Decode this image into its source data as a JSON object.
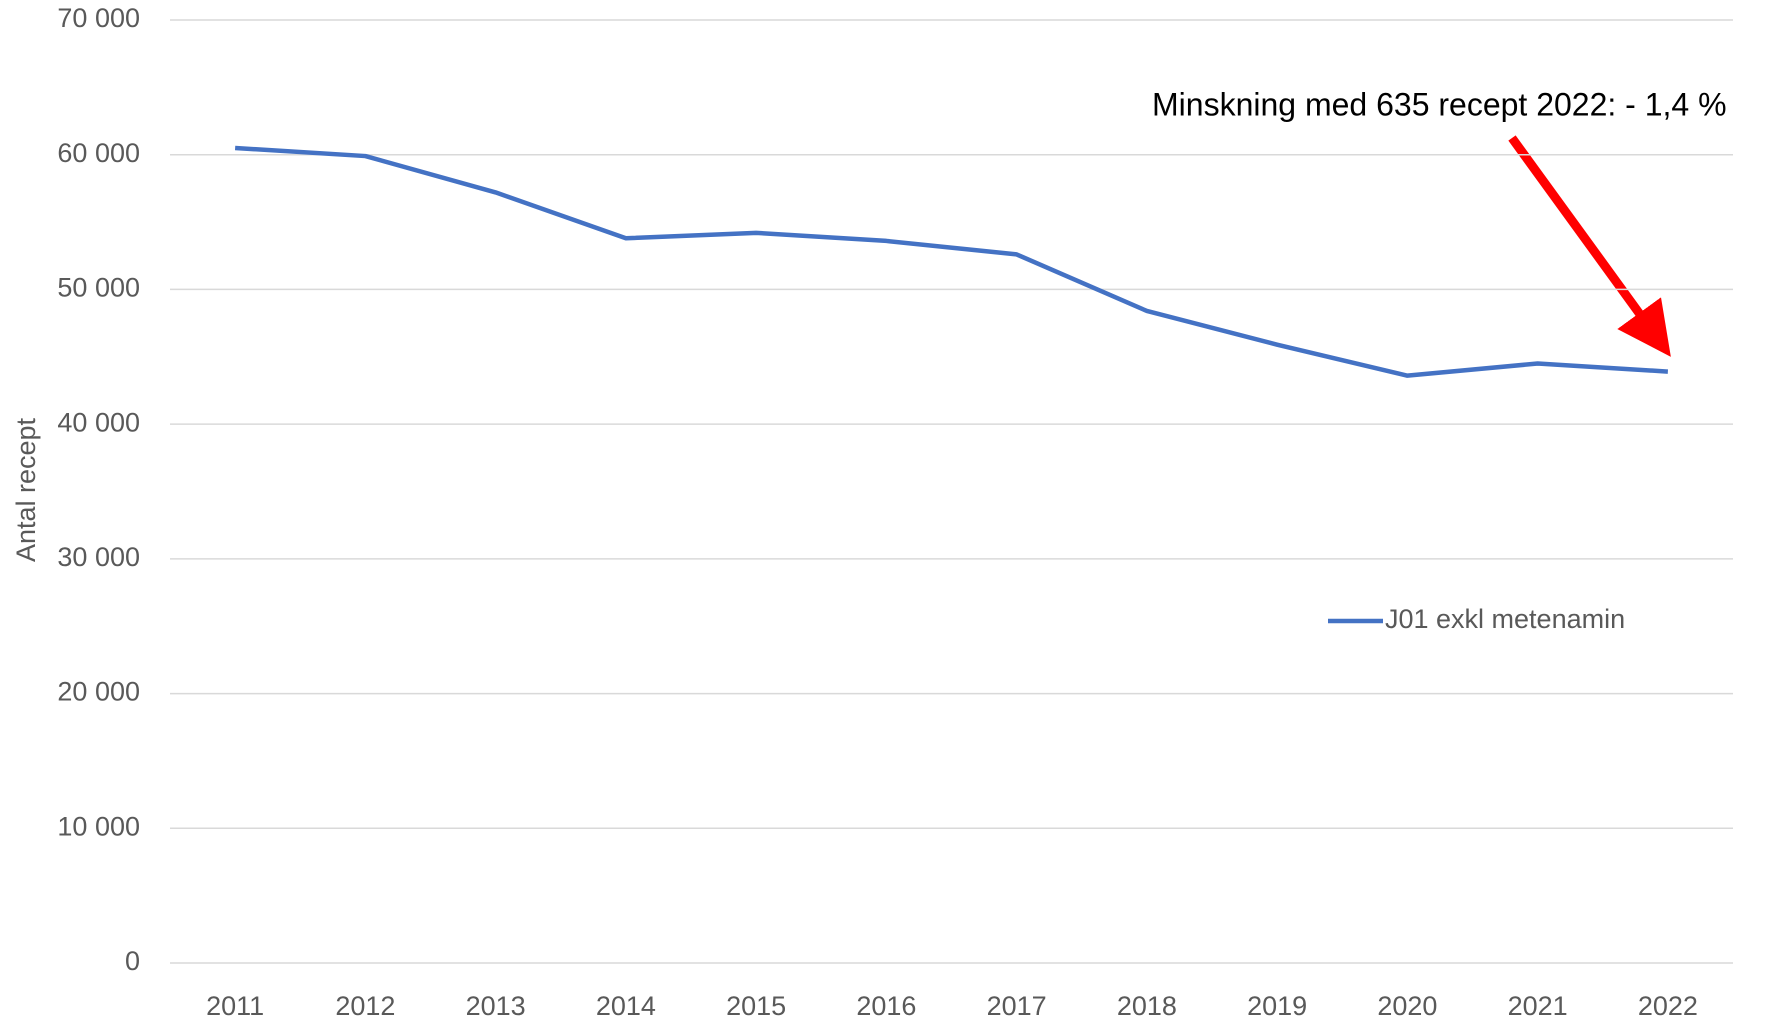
{
  "chart_data": {
    "type": "line",
    "y_label": "Antal recept",
    "annotation": "Minskning med 635 recept 2022: - 1,4 %",
    "categories": [
      "2011",
      "2012",
      "2013",
      "2014",
      "2015",
      "2016",
      "2017",
      "2018",
      "2019",
      "2020",
      "2021",
      "2022"
    ],
    "series": [
      {
        "name": "J01 exkl metenamin",
        "color": "#4472c4",
        "values": [
          60500,
          59900,
          57200,
          53800,
          54200,
          53600,
          52600,
          48400,
          45900,
          43600,
          44500,
          43900
        ]
      }
    ],
    "ylim": [
      0,
      70000
    ],
    "yticks": [
      0,
      {
        "value": 10000,
        "label": "10 000"
      },
      {
        "value": 20000,
        "label": "20 000"
      },
      {
        "value": 30000,
        "label": "30 000"
      },
      {
        "value": 40000,
        "label": "40 000"
      },
      {
        "value": 50000,
        "label": "50 000"
      },
      {
        "value": 60000,
        "label": "60 000"
      },
      {
        "value": 70000,
        "label": "70 000"
      }
    ],
    "grid": true,
    "legend": "right"
  }
}
